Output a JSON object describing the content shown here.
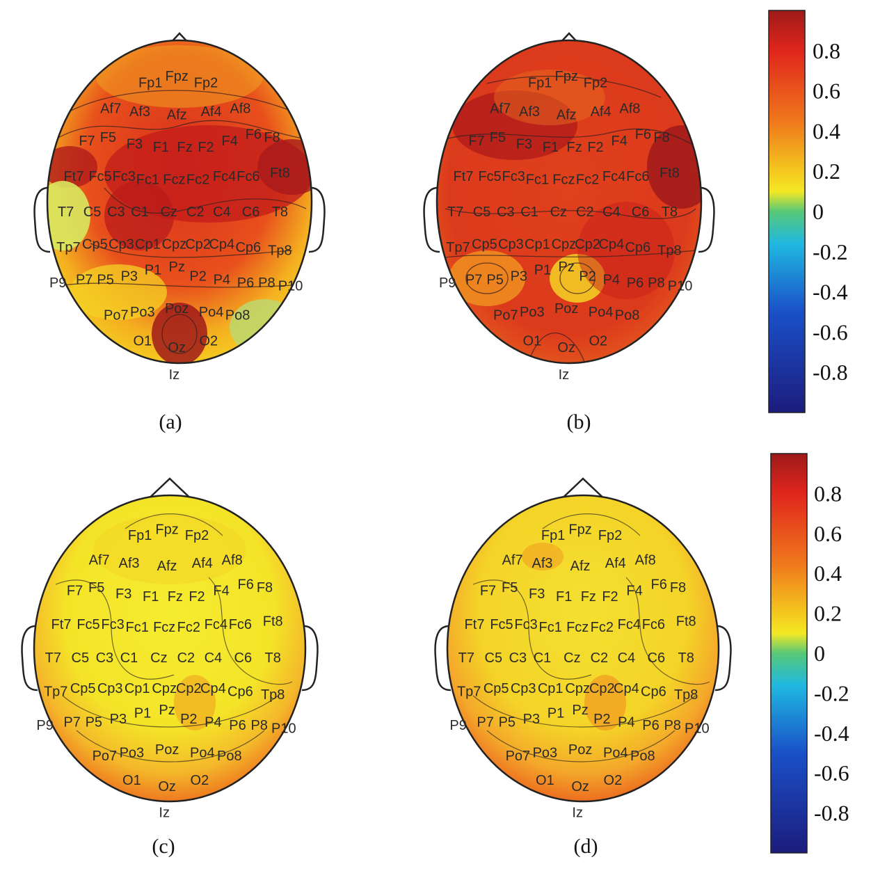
{
  "panels": [
    {
      "id": "a",
      "label": "(a)",
      "theme": "hot-front"
    },
    {
      "id": "b",
      "label": "(b)",
      "theme": "hot-all"
    },
    {
      "id": "c",
      "label": "(c)",
      "theme": "warm-ring"
    },
    {
      "id": "d",
      "label": "(d)",
      "theme": "warm-ring"
    }
  ],
  "electrodes": [
    "Fp1",
    "Fpz",
    "Fp2",
    "Af7",
    "Af3",
    "Afz",
    "Af4",
    "Af8",
    "F7",
    "F5",
    "F3",
    "F1",
    "Fz",
    "F2",
    "F4",
    "F6",
    "F8",
    "Ft7",
    "Fc5",
    "Fc3",
    "Fc1",
    "Fcz",
    "Fc2",
    "Fc4",
    "Fc6",
    "Ft8",
    "T7",
    "C5",
    "C3",
    "C1",
    "Cz",
    "C2",
    "C4",
    "C6",
    "T8",
    "Tp7",
    "Cp5",
    "Cp3",
    "Cp1",
    "Cpz",
    "Cp2",
    "Cp4",
    "Cp6",
    "Tp8",
    "P9",
    "P7",
    "P5",
    "P3",
    "P1",
    "Pz",
    "P2",
    "P4",
    "P6",
    "P8",
    "P10",
    "Po7",
    "Po3",
    "Poz",
    "Po4",
    "Po8",
    "O1",
    "Oz",
    "O2",
    "Iz"
  ],
  "colorbar": {
    "ticks": [
      "0.8",
      "0.6",
      "0.4",
      "0.2",
      "0",
      "-0.2",
      "-0.4",
      "-0.6",
      "-0.8"
    ],
    "range": [
      -1,
      1
    ]
  },
  "colors": {
    "dark_red": "#9e1a1a",
    "red": "#e0261c",
    "orange": "#f07a1c",
    "yellow": "#f4e824",
    "green": "#58c878",
    "cyan": "#20b8e0",
    "blue": "#1a50c8",
    "dark_blue": "#1c1c7c"
  }
}
